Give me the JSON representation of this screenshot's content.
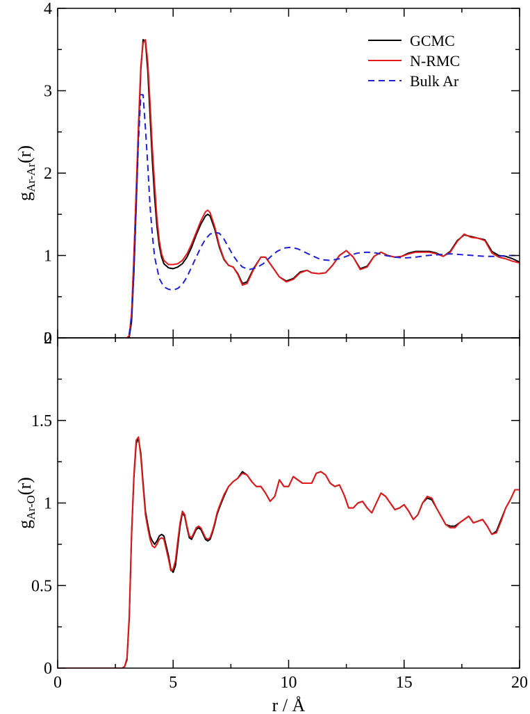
{
  "chart_data": [
    {
      "type": "line",
      "panel": "top",
      "title": "",
      "ylabel": {
        "base": "g",
        "sub": "Ar-Ar",
        "suffix": "(r)"
      },
      "xlim": [
        0,
        20
      ],
      "ylim": [
        0,
        4
      ],
      "yticks": [
        "0",
        "1",
        "2",
        "3",
        "4"
      ],
      "grid": false,
      "legend": {
        "placement": "top-right"
      },
      "series": [
        {
          "name": "GCMC",
          "color": "#000000",
          "dash": "solid",
          "x": [
            0,
            2.9,
            3.0,
            3.1,
            3.2,
            3.3,
            3.4,
            3.5,
            3.6,
            3.7,
            3.8,
            3.9,
            4.0,
            4.1,
            4.2,
            4.3,
            4.4,
            4.5,
            4.6,
            4.8,
            5.0,
            5.2,
            5.4,
            5.6,
            5.8,
            6.0,
            6.2,
            6.4,
            6.5,
            6.6,
            6.8,
            7.0,
            7.2,
            7.4,
            7.6,
            7.8,
            8.0,
            8.2,
            8.5,
            8.8,
            9.0,
            9.3,
            9.6,
            9.9,
            10.2,
            10.5,
            10.8,
            11.0,
            11.3,
            11.6,
            11.9,
            12.2,
            12.5,
            12.8,
            13.1,
            13.4,
            13.7,
            14.0,
            14.3,
            14.6,
            14.9,
            15.2,
            15.5,
            15.8,
            16.1,
            16.4,
            16.7,
            17.0,
            17.3,
            17.6,
            17.9,
            18.2,
            18.5,
            18.8,
            19.1,
            19.4,
            19.7,
            20.0
          ],
          "y": [
            0,
            0,
            0,
            0.01,
            0.2,
            0.8,
            1.6,
            2.5,
            3.25,
            3.62,
            3.6,
            3.25,
            2.7,
            2.15,
            1.7,
            1.35,
            1.12,
            0.98,
            0.9,
            0.85,
            0.84,
            0.86,
            0.9,
            0.98,
            1.1,
            1.25,
            1.38,
            1.48,
            1.5,
            1.48,
            1.32,
            1.1,
            0.95,
            0.88,
            0.86,
            0.78,
            0.66,
            0.68,
            0.85,
            0.98,
            0.98,
            0.86,
            0.74,
            0.69,
            0.72,
            0.8,
            0.82,
            0.79,
            0.78,
            0.79,
            0.88,
            1.0,
            1.06,
            0.98,
            0.84,
            0.87,
            0.99,
            1.04,
            1.0,
            0.98,
            0.99,
            1.03,
            1.05,
            1.05,
            1.05,
            1.03,
            0.99,
            1.05,
            1.18,
            1.25,
            1.23,
            1.21,
            1.19,
            1.05,
            1.0,
            0.99,
            0.96,
            0.92
          ]
        },
        {
          "name": "N-RMC",
          "color": "#e31a1c",
          "dash": "solid",
          "x": [
            0,
            2.9,
            3.0,
            3.1,
            3.2,
            3.3,
            3.4,
            3.5,
            3.6,
            3.7,
            3.8,
            3.9,
            4.0,
            4.1,
            4.2,
            4.3,
            4.4,
            4.5,
            4.6,
            4.8,
            5.0,
            5.2,
            5.4,
            5.6,
            5.8,
            6.0,
            6.2,
            6.4,
            6.5,
            6.6,
            6.8,
            7.0,
            7.2,
            7.4,
            7.6,
            7.8,
            8.0,
            8.2,
            8.5,
            8.8,
            9.0,
            9.3,
            9.6,
            9.9,
            10.2,
            10.5,
            10.8,
            11.0,
            11.3,
            11.6,
            11.9,
            12.2,
            12.5,
            12.8,
            13.1,
            13.4,
            13.7,
            14.0,
            14.3,
            14.6,
            14.9,
            15.2,
            15.5,
            15.8,
            16.1,
            16.4,
            16.7,
            17.0,
            17.3,
            17.6,
            17.9,
            18.2,
            18.5,
            18.8,
            19.1,
            19.4,
            19.7,
            20.0
          ],
          "y": [
            0,
            0,
            0,
            0.03,
            0.3,
            1.0,
            1.8,
            2.6,
            3.3,
            3.58,
            3.62,
            3.35,
            2.85,
            2.3,
            1.85,
            1.45,
            1.18,
            1.02,
            0.94,
            0.89,
            0.89,
            0.9,
            0.94,
            1.02,
            1.14,
            1.28,
            1.42,
            1.53,
            1.55,
            1.52,
            1.35,
            1.12,
            0.96,
            0.88,
            0.86,
            0.77,
            0.64,
            0.66,
            0.84,
            0.98,
            0.98,
            0.86,
            0.74,
            0.68,
            0.71,
            0.79,
            0.82,
            0.79,
            0.78,
            0.79,
            0.88,
            1.0,
            1.06,
            0.98,
            0.83,
            0.86,
            0.99,
            1.04,
            1.0,
            0.98,
            0.99,
            1.02,
            1.04,
            1.04,
            1.04,
            1.02,
            0.99,
            1.04,
            1.17,
            1.26,
            1.22,
            1.21,
            1.18,
            1.03,
            0.98,
            0.96,
            0.93,
            0.91
          ]
        },
        {
          "name": "Bulk Ar",
          "color": "#1f1fd6",
          "dash": "dashed",
          "x": [
            0,
            3.0,
            3.1,
            3.2,
            3.3,
            3.4,
            3.5,
            3.6,
            3.7,
            3.8,
            3.9,
            4.0,
            4.1,
            4.2,
            4.4,
            4.6,
            4.8,
            5.0,
            5.2,
            5.4,
            5.6,
            5.8,
            6.0,
            6.2,
            6.4,
            6.6,
            6.8,
            7.0,
            7.2,
            7.4,
            7.6,
            7.8,
            8.0,
            8.3,
            8.6,
            8.9,
            9.2,
            9.5,
            9.8,
            10.1,
            10.4,
            10.7,
            11.0,
            11.4,
            11.8,
            12.2,
            12.6,
            13.0,
            13.4,
            13.8,
            14.2,
            14.6,
            15.0,
            15.5,
            16.0,
            16.5,
            17.0,
            17.5,
            18.0,
            18.5,
            19.0,
            19.5,
            20.0
          ],
          "y": [
            0,
            0,
            0.05,
            0.25,
            0.8,
            1.6,
            2.4,
            2.95,
            2.95,
            2.55,
            2.1,
            1.6,
            1.25,
            0.98,
            0.72,
            0.62,
            0.59,
            0.58,
            0.6,
            0.65,
            0.74,
            0.86,
            0.98,
            1.1,
            1.2,
            1.26,
            1.28,
            1.27,
            1.2,
            1.1,
            1.0,
            0.92,
            0.86,
            0.83,
            0.85,
            0.9,
            0.98,
            1.05,
            1.09,
            1.1,
            1.08,
            1.04,
            1.0,
            0.95,
            0.94,
            0.96,
            1.0,
            1.03,
            1.04,
            1.03,
            1.0,
            0.98,
            0.97,
            0.98,
            1.0,
            1.01,
            1.02,
            1.01,
            1.0,
            0.99,
            0.99,
            1.0,
            1.0
          ]
        }
      ]
    },
    {
      "type": "line",
      "panel": "bottom",
      "title": "",
      "xlabel": "r / Å",
      "ylabel": {
        "base": "g",
        "sub": "Ar-O",
        "suffix": "(r)"
      },
      "xlim": [
        0,
        20
      ],
      "ylim": [
        0,
        2
      ],
      "xticks": [
        "0",
        "5",
        "10",
        "15",
        "20"
      ],
      "yticks": [
        "0",
        "0.5",
        "1",
        "1.5",
        "2"
      ],
      "grid": false,
      "series": [
        {
          "name": "GCMC",
          "color": "#000000",
          "dash": "solid",
          "x": [
            0,
            2.8,
            2.9,
            3.0,
            3.1,
            3.2,
            3.3,
            3.4,
            3.5,
            3.6,
            3.7,
            3.8,
            3.9,
            4.0,
            4.1,
            4.2,
            4.3,
            4.4,
            4.5,
            4.6,
            4.7,
            4.8,
            4.9,
            5.0,
            5.1,
            5.2,
            5.3,
            5.4,
            5.5,
            5.6,
            5.7,
            5.8,
            5.9,
            6.0,
            6.1,
            6.2,
            6.3,
            6.4,
            6.5,
            6.6,
            6.7,
            6.8,
            6.9,
            7.0,
            7.2,
            7.4,
            7.6,
            7.8,
            8.0,
            8.2,
            8.4,
            8.6,
            8.8,
            9.0,
            9.2,
            9.4,
            9.6,
            9.8,
            10.0,
            10.2,
            10.4,
            10.6,
            10.8,
            11.0,
            11.2,
            11.4,
            11.6,
            11.8,
            12.0,
            12.2,
            12.4,
            12.6,
            12.8,
            13.0,
            13.2,
            13.4,
            13.6,
            13.8,
            14.0,
            14.2,
            14.4,
            14.6,
            14.8,
            15.0,
            15.2,
            15.4,
            15.6,
            15.8,
            16.0,
            16.2,
            16.4,
            16.6,
            16.8,
            17.0,
            17.2,
            17.4,
            17.6,
            17.8,
            18.0,
            18.2,
            18.4,
            18.6,
            18.8,
            19.0,
            19.2,
            19.4,
            19.6,
            19.8,
            20.0
          ],
          "y": [
            0,
            0,
            0.01,
            0.05,
            0.3,
            0.8,
            1.15,
            1.36,
            1.39,
            1.3,
            1.12,
            0.95,
            0.87,
            0.8,
            0.77,
            0.75,
            0.77,
            0.8,
            0.81,
            0.8,
            0.74,
            0.68,
            0.6,
            0.58,
            0.62,
            0.74,
            0.86,
            0.94,
            0.92,
            0.85,
            0.79,
            0.78,
            0.81,
            0.84,
            0.85,
            0.84,
            0.81,
            0.78,
            0.77,
            0.78,
            0.82,
            0.87,
            0.93,
            0.97,
            1.04,
            1.1,
            1.13,
            1.15,
            1.19,
            1.17,
            1.13,
            1.1,
            1.1,
            1.06,
            1.01,
            1.04,
            1.14,
            1.1,
            1.1,
            1.16,
            1.14,
            1.12,
            1.12,
            1.12,
            1.18,
            1.19,
            1.17,
            1.12,
            1.1,
            1.11,
            1.05,
            0.97,
            0.97,
            1.0,
            1.01,
            0.97,
            0.94,
            1.0,
            1.06,
            1.04,
            1.0,
            0.96,
            0.97,
            0.99,
            0.95,
            0.9,
            0.93,
            1.0,
            1.03,
            1.02,
            0.97,
            0.92,
            0.87,
            0.86,
            0.86,
            0.88,
            0.9,
            0.92,
            0.88,
            0.89,
            0.9,
            0.86,
            0.81,
            0.83,
            0.9,
            0.97,
            1.02,
            1.08,
            1.08
          ]
        },
        {
          "name": "N-RMC",
          "color": "#e31a1c",
          "dash": "solid",
          "x": [
            0,
            2.8,
            2.9,
            3.0,
            3.1,
            3.2,
            3.3,
            3.4,
            3.5,
            3.6,
            3.7,
            3.8,
            3.9,
            4.0,
            4.1,
            4.2,
            4.3,
            4.4,
            4.5,
            4.6,
            4.7,
            4.8,
            4.9,
            5.0,
            5.1,
            5.2,
            5.3,
            5.4,
            5.5,
            5.6,
            5.7,
            5.8,
            5.9,
            6.0,
            6.1,
            6.2,
            6.3,
            6.4,
            6.5,
            6.6,
            6.7,
            6.8,
            6.9,
            7.0,
            7.2,
            7.4,
            7.6,
            7.8,
            8.0,
            8.2,
            8.4,
            8.6,
            8.8,
            9.0,
            9.2,
            9.4,
            9.6,
            9.8,
            10.0,
            10.2,
            10.4,
            10.6,
            10.8,
            11.0,
            11.2,
            11.4,
            11.6,
            11.8,
            12.0,
            12.2,
            12.4,
            12.6,
            12.8,
            13.0,
            13.2,
            13.4,
            13.6,
            13.8,
            14.0,
            14.2,
            14.4,
            14.6,
            14.8,
            15.0,
            15.2,
            15.4,
            15.6,
            15.8,
            16.0,
            16.2,
            16.4,
            16.6,
            16.8,
            17.0,
            17.2,
            17.4,
            17.6,
            17.8,
            18.0,
            18.2,
            18.4,
            18.6,
            18.8,
            19.0,
            19.2,
            19.4,
            19.6,
            19.8,
            20.0
          ],
          "y": [
            0,
            0,
            0.01,
            0.06,
            0.32,
            0.82,
            1.17,
            1.38,
            1.4,
            1.28,
            1.1,
            0.93,
            0.85,
            0.78,
            0.74,
            0.73,
            0.75,
            0.78,
            0.79,
            0.78,
            0.72,
            0.66,
            0.59,
            0.6,
            0.65,
            0.77,
            0.88,
            0.95,
            0.93,
            0.86,
            0.8,
            0.79,
            0.82,
            0.85,
            0.86,
            0.85,
            0.82,
            0.79,
            0.78,
            0.79,
            0.83,
            0.88,
            0.94,
            0.98,
            1.05,
            1.1,
            1.13,
            1.15,
            1.18,
            1.17,
            1.13,
            1.1,
            1.1,
            1.06,
            1.01,
            1.04,
            1.14,
            1.1,
            1.1,
            1.16,
            1.14,
            1.12,
            1.12,
            1.12,
            1.18,
            1.19,
            1.17,
            1.12,
            1.1,
            1.11,
            1.05,
            0.97,
            0.97,
            1.0,
            1.01,
            0.97,
            0.94,
            1.0,
            1.06,
            1.04,
            1.0,
            0.96,
            0.97,
            0.99,
            0.95,
            0.9,
            0.93,
            1.0,
            1.04,
            1.03,
            0.97,
            0.92,
            0.87,
            0.85,
            0.85,
            0.88,
            0.9,
            0.92,
            0.88,
            0.89,
            0.9,
            0.86,
            0.81,
            0.82,
            0.89,
            0.97,
            1.02,
            1.08,
            1.08
          ]
        }
      ]
    }
  ]
}
